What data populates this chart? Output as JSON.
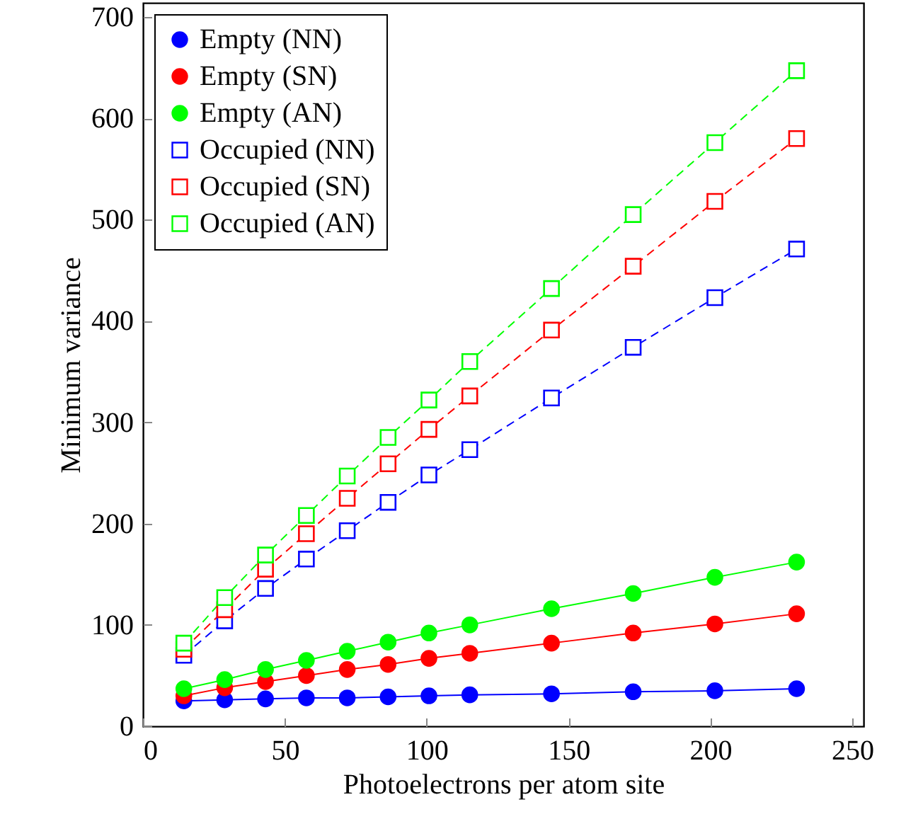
{
  "chart_data": {
    "type": "line",
    "xlabel": "Photoelectrons per atom site",
    "ylabel": "Minimum variance",
    "x": [
      14.4,
      28.8,
      43.2,
      57.6,
      72,
      86.4,
      100.8,
      115.2,
      144,
      172.8,
      201.6,
      230.4
    ],
    "xlim": [
      0,
      254
    ],
    "xticks": [
      0,
      50,
      100,
      150,
      200,
      250
    ],
    "ylim": [
      0,
      714
    ],
    "yticks": [
      0,
      100,
      200,
      300,
      400,
      500,
      600,
      700
    ],
    "grid": false,
    "legend": "top left",
    "series": [
      {
        "name": "Empty (NN)",
        "color": "#0000ff",
        "marker": "circle",
        "line_style": "solid",
        "values": [
          25,
          26,
          27,
          28,
          28,
          29,
          30,
          31,
          32,
          34,
          35,
          37
        ]
      },
      {
        "name": "Empty (SN)",
        "color": "#ff0000",
        "marker": "circle",
        "line_style": "solid",
        "values": [
          30,
          38,
          44,
          50,
          56,
          61,
          67,
          72,
          82,
          92,
          101,
          111
        ]
      },
      {
        "name": "Empty (AN)",
        "color": "#00ff00",
        "marker": "circle",
        "line_style": "solid",
        "values": [
          37,
          46,
          56,
          65,
          74,
          83,
          92,
          100,
          116,
          131,
          147,
          162
        ]
      },
      {
        "name": "Occupied (NN)",
        "color": "#0000ff",
        "marker": "square",
        "line_style": "dashed",
        "values": [
          70,
          104,
          136,
          165,
          193,
          221,
          248,
          273,
          324,
          374,
          423,
          471
        ]
      },
      {
        "name": "Occupied (SN)",
        "color": "#ff0000",
        "marker": "square",
        "line_style": "dashed",
        "values": [
          76,
          115,
          155,
          190,
          225,
          259,
          293,
          326,
          391,
          454,
          518,
          580
        ]
      },
      {
        "name": "Occupied (AN)",
        "color": "#00ff00",
        "marker": "square",
        "line_style": "dashed",
        "values": [
          82,
          127,
          169,
          208,
          247,
          285,
          322,
          360,
          432,
          505,
          576,
          647
        ]
      }
    ]
  }
}
